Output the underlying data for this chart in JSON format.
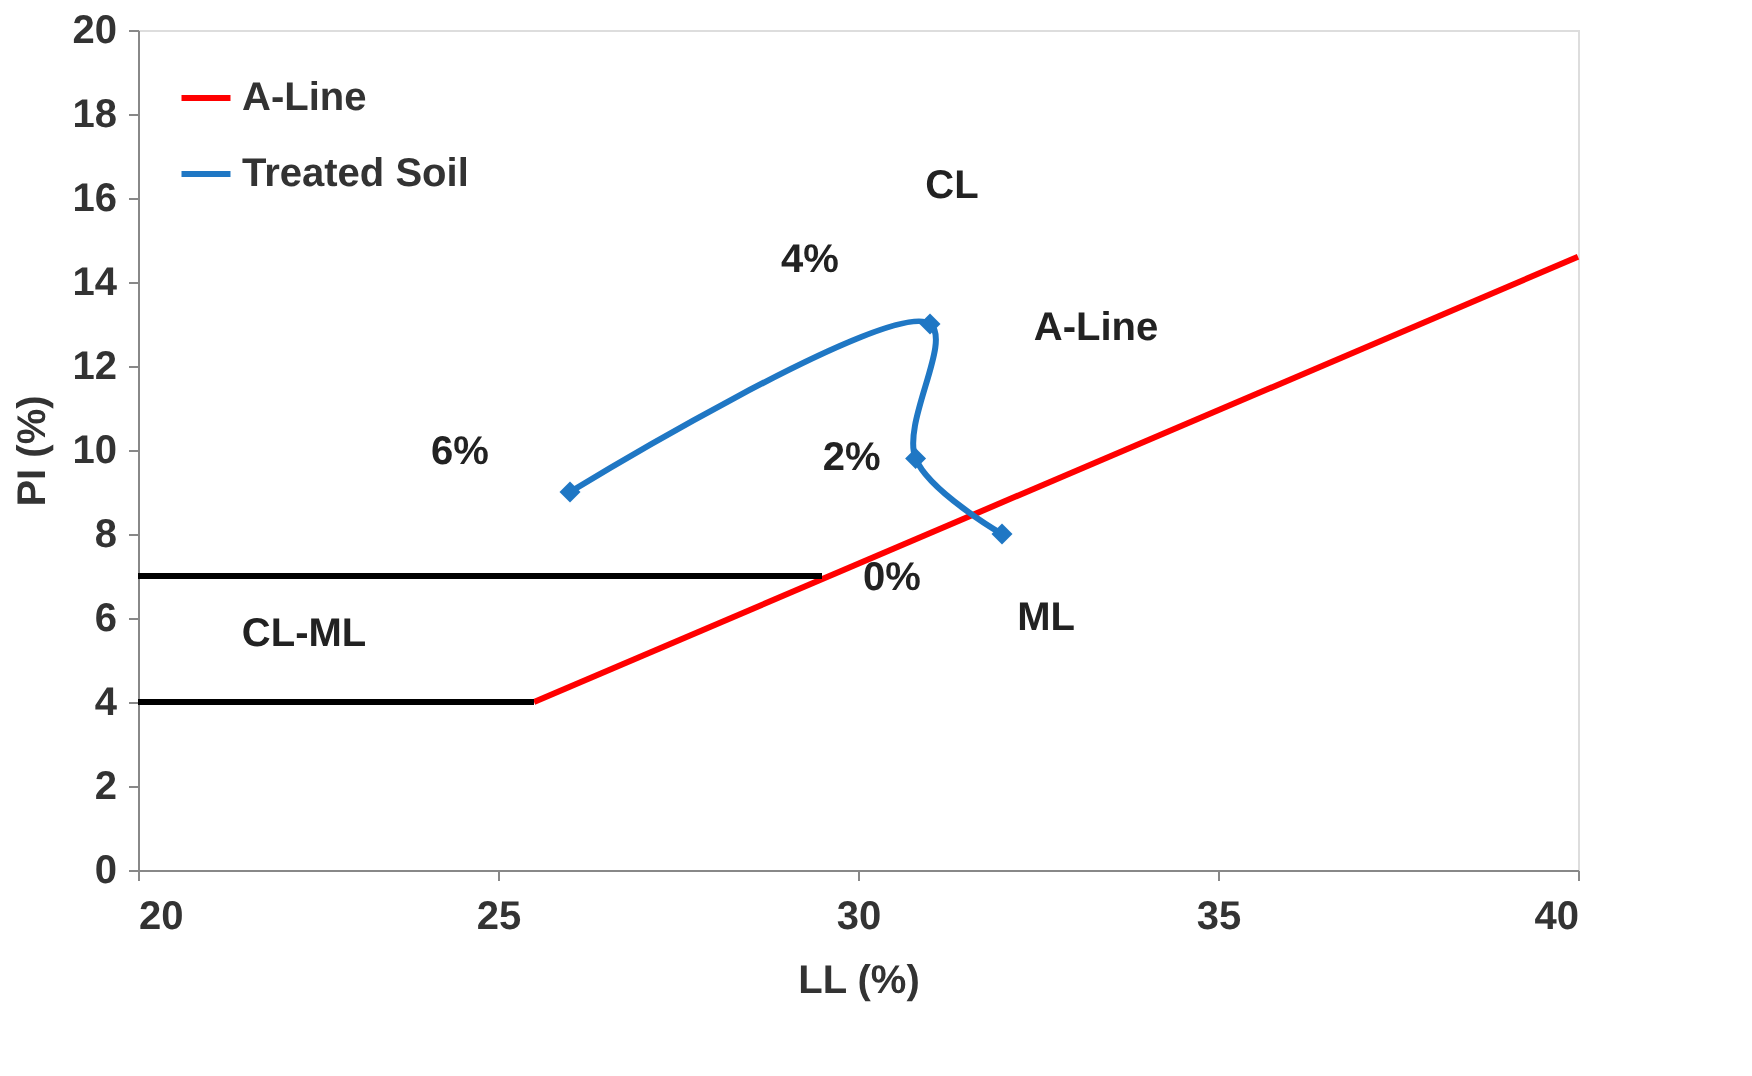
{
  "chart_data": {
    "type": "line",
    "xlabel": "LL (%)",
    "ylabel": "PI (%)",
    "xlim": [
      20,
      40
    ],
    "xticks": [
      20,
      25,
      30,
      35,
      40
    ],
    "ylim": [
      0,
      20
    ],
    "yticks": [
      0,
      2,
      4,
      6,
      8,
      10,
      12,
      14,
      16,
      18,
      20
    ],
    "grid": false,
    "legend": "top left",
    "series": [
      {
        "name": "A-Line",
        "color": "#ff0000",
        "x": [
          25.5,
          40
        ],
        "values": [
          4,
          14.6
        ],
        "marker": "none"
      },
      {
        "name": "Treated Soil",
        "color": "#1f77c4",
        "x": [
          26,
          31,
          30.8,
          32
        ],
        "values": [
          9,
          13,
          9.8,
          8
        ],
        "marker": "diamond"
      },
      {
        "color": "#000000",
        "x": [
          20,
          29.5
        ],
        "values": [
          7,
          7
        ],
        "marker": "none"
      },
      {
        "color": "#000000",
        "x": [
          20,
          25.5
        ],
        "values": [
          4,
          4
        ],
        "marker": "none"
      }
    ],
    "annotations": [
      "CL",
      "A-Line",
      {
        "text": "6%",
        "x": 26,
        "y": 9
      },
      {
        "text": "4%",
        "x": 31,
        "y": 13
      },
      {
        "text": "2%",
        "x": 30.8,
        "y": 9.8
      },
      {
        "text": "0%",
        "x": 32,
        "y": 8
      },
      "ML",
      "CL-ML"
    ]
  }
}
